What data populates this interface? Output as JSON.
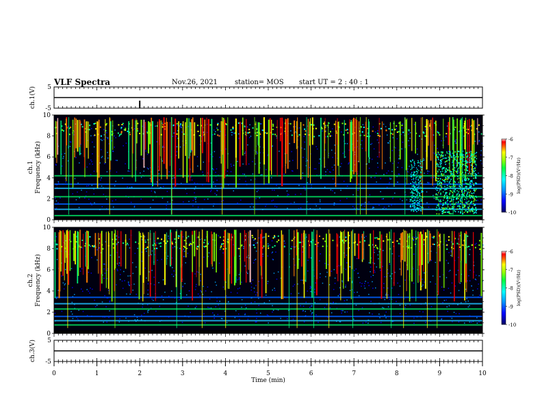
{
  "header": {
    "title": "VLF Spectra",
    "date": "Nov.26, 2021",
    "station": "station= MOS",
    "start_ut": "start  UT =   2 : 40 : 1"
  },
  "colors": {
    "background": "#000000",
    "cmap": [
      "#000080",
      "#0000ff",
      "#00a0ff",
      "#00ffff",
      "#00ff80",
      "#80ff00",
      "#ffff00",
      "#ff8000",
      "#ff0000",
      "#ffc0c0"
    ]
  },
  "chart_data": [
    {
      "type": "line",
      "panel": "ch1-waveform",
      "ylabel": "ch.1(V)",
      "ylim": [
        -5,
        5
      ],
      "yticks": [
        "5",
        "-5"
      ],
      "xlim": [
        0,
        10
      ],
      "series": [
        {
          "x": [
            0,
            10
          ],
          "values": [
            0,
            0
          ]
        }
      ]
    },
    {
      "type": "heatmap",
      "panel": "ch1-spectrogram",
      "ylabel": "ch.1\nFrequency (kHz)",
      "ylim": [
        0,
        10
      ],
      "yticks": [
        "0",
        "2",
        "4",
        "6",
        "8",
        "10"
      ],
      "xlim": [
        0,
        10
      ],
      "note_bands_khz": [
        0.4,
        1.0,
        1.5,
        2.2,
        3.0,
        3.4,
        4.2
      ],
      "colorbar": {
        "label": "log(PSD)(V²/Hz)",
        "ticks": [
          "-6",
          "-7",
          "-8",
          "-9",
          "-10"
        ],
        "range": [
          -10,
          -6
        ]
      }
    },
    {
      "type": "heatmap",
      "panel": "ch2-spectrogram",
      "ylabel": "ch.2\nFrequency (kHz)",
      "ylim": [
        0,
        10
      ],
      "yticks": [
        "0",
        "2",
        "4",
        "6",
        "8",
        "10"
      ],
      "xlim": [
        0,
        10
      ],
      "note_bands_khz": [
        0.8,
        1.2,
        1.6,
        2.3,
        2.8,
        3.4
      ],
      "colorbar": {
        "label": "log(PSD)(V²/Hz)",
        "ticks": [
          "-6",
          "-7",
          "-8",
          "-9",
          "-10"
        ],
        "range": [
          -10,
          -6
        ]
      }
    },
    {
      "type": "line",
      "panel": "ch3-waveform",
      "ylabel": "ch.3(V)",
      "ylim": [
        -5,
        5
      ],
      "yticks": [
        "5",
        "-5"
      ],
      "xlim": [
        0,
        10
      ],
      "xlabel": "Time (min)",
      "xticks": [
        "0",
        "1",
        "2",
        "3",
        "4",
        "5",
        "6",
        "7",
        "8",
        "9",
        "10"
      ],
      "series": [
        {
          "x": [
            0,
            10
          ],
          "values": [
            0,
            0
          ]
        }
      ]
    }
  ]
}
